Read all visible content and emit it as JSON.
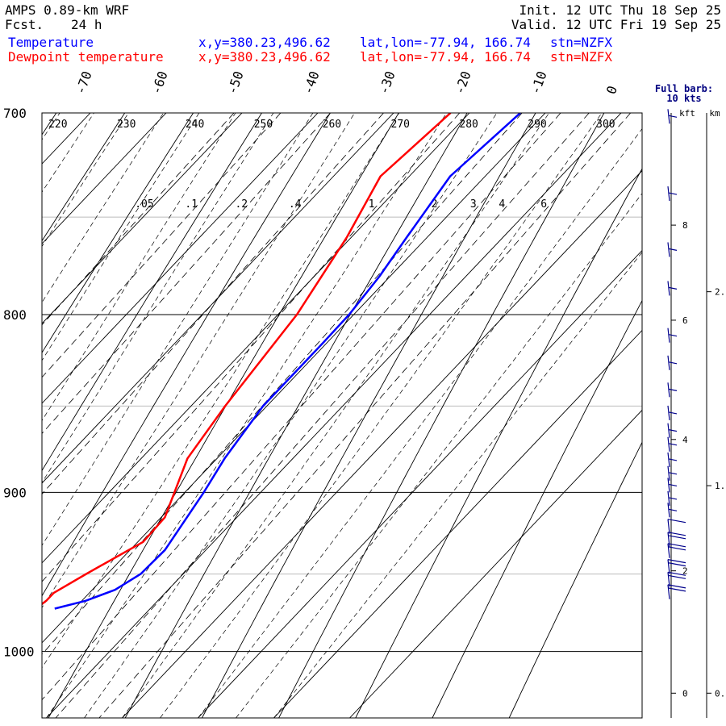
{
  "header": {
    "model": "AMPS 0.89-km WRF",
    "fcst_label": "Fcst.",
    "fcst_value": "24 h",
    "init": "Init. 12 UTC Thu 18 Sep 25",
    "valid": "Valid. 12 UTC Fri 19 Sep 25"
  },
  "series_info": [
    {
      "name": "Temperature",
      "xy": "x,y=380.23,496.62",
      "latlon": "lat,lon=-77.94, 166.74",
      "stn": "stn=NZFX",
      "color": "#0000ff"
    },
    {
      "name": "Dewpoint temperature",
      "xy": "x,y=380.23,496.62",
      "latlon": "lat,lon=-77.94, 166.74",
      "stn": "stn=NZFX",
      "color": "#ff0000"
    }
  ],
  "barb_legend": {
    "line1": "Full barb:",
    "line2": "10 kts"
  },
  "height_axis": {
    "kft_label": "kft",
    "km_label": "km",
    "kft_ticks": [
      {
        "v": "8",
        "p": 754
      },
      {
        "v": "6",
        "p": 803
      },
      {
        "v": "4",
        "p": 869
      },
      {
        "v": "2",
        "p": 948
      },
      {
        "v": "0",
        "p": 1028
      }
    ],
    "km_ticks": [
      {
        "v": "2.",
        "p": 788
      },
      {
        "v": "1.",
        "p": 896
      },
      {
        "v": "0.",
        "p": 1028
      }
    ]
  },
  "chart_data": {
    "type": "line",
    "diagram": "skew-T log-p",
    "pressure_range_hPa": [
      1045,
      700
    ],
    "pressure_labels": [
      "700",
      "800",
      "900",
      "1000"
    ],
    "isotherm_labels_C": [
      "-70",
      "-60",
      "-50",
      "-40",
      "-30",
      "-20",
      "-10",
      "0"
    ],
    "dry_adiabat_labels_K": [
      "220",
      "230",
      "240",
      "250",
      "260",
      "270",
      "280",
      "290",
      "300"
    ],
    "mixing_ratio_labels": [
      ".05",
      ".1",
      ".2",
      ".4",
      "1",
      "2",
      "3",
      "4",
      "6"
    ],
    "series": [
      {
        "name": "Temperature",
        "color": "#0000ff",
        "points": [
          {
            "p": 700,
            "t": -13.3
          },
          {
            "p": 730,
            "t": -14.6
          },
          {
            "p": 760,
            "t": -12.7
          },
          {
            "p": 780,
            "t": -11.4
          },
          {
            "p": 800,
            "t": -10.6
          },
          {
            "p": 815,
            "t": -10.5
          },
          {
            "p": 850,
            "t": -10.5
          },
          {
            "p": 880,
            "t": -9.0
          },
          {
            "p": 900,
            "t": -7.5
          },
          {
            "p": 935,
            "t": -5.4
          },
          {
            "p": 950,
            "t": -5.6
          },
          {
            "p": 960,
            "t": -7.0
          },
          {
            "p": 967,
            "t": -9.5
          },
          {
            "p": 972,
            "t": -12.6
          }
        ]
      },
      {
        "name": "Dewpoint temperature",
        "color": "#ff0000",
        "points": [
          {
            "p": 700,
            "t": -22.5
          },
          {
            "p": 730,
            "t": -23.8
          },
          {
            "p": 760,
            "t": -20.6
          },
          {
            "p": 800,
            "t": -17.5
          },
          {
            "p": 850,
            "t": -15.5
          },
          {
            "p": 880,
            "t": -13.9
          },
          {
            "p": 915,
            "t": -9.5
          },
          {
            "p": 930,
            "t": -9.3
          },
          {
            "p": 950,
            "t": -12.8
          },
          {
            "p": 962,
            "t": -14.7
          },
          {
            "p": 967,
            "t": -14.7
          },
          {
            "p": 971,
            "t": -15.0
          }
        ]
      }
    ],
    "wind_barbs_kts": [
      {
        "p": 705,
        "speed": 5
      },
      {
        "p": 742,
        "speed": 5
      },
      {
        "p": 770,
        "speed": 5
      },
      {
        "p": 790,
        "speed": 5
      },
      {
        "p": 815,
        "speed": 5
      },
      {
        "p": 830,
        "speed": 5
      },
      {
        "p": 845,
        "speed": 5
      },
      {
        "p": 858,
        "speed": 5
      },
      {
        "p": 868,
        "speed": 5
      },
      {
        "p": 876,
        "speed": 5
      },
      {
        "p": 885,
        "speed": 5
      },
      {
        "p": 893,
        "speed": 5
      },
      {
        "p": 900,
        "speed": 5
      },
      {
        "p": 908,
        "speed": 5
      },
      {
        "p": 915,
        "speed": 5
      },
      {
        "p": 925,
        "speed": 10
      },
      {
        "p": 933,
        "speed": 20
      },
      {
        "p": 940,
        "speed": 20
      },
      {
        "p": 950,
        "speed": 20
      },
      {
        "p": 958,
        "speed": 20
      },
      {
        "p": 966,
        "speed": 20
      }
    ]
  }
}
